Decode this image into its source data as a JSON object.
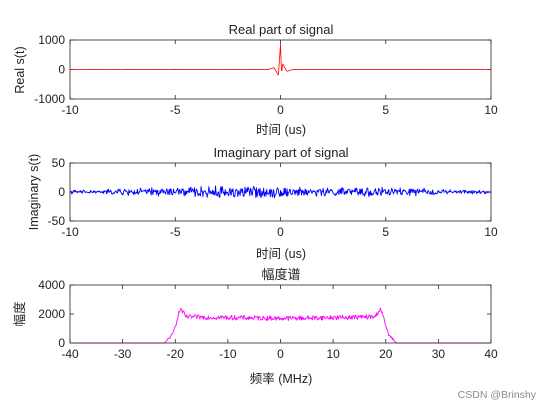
{
  "watermark": "CSDN @Brinshy",
  "chart_data": [
    {
      "type": "line",
      "title": "Real part of signal",
      "xlabel": "时间 (us)",
      "ylabel": "Real s(t)",
      "xlim": [
        -10,
        10
      ],
      "ylim": [
        -1000,
        1000
      ],
      "xticks": [
        -10,
        -5,
        0,
        5,
        10
      ],
      "yticks": [
        -1000,
        0,
        1000
      ],
      "xtick_labels": [
        "-10",
        "-5",
        "0",
        "5",
        "10"
      ],
      "ytick_labels": [
        "-1000",
        "0",
        "1000"
      ],
      "grid": false,
      "series": [
        {
          "color": "#ff0000",
          "description_points": {
            "x": [
              -10,
              -0.6,
              -0.3,
              -0.1,
              0,
              0.05,
              0.1,
              0.3,
              0.6,
              10
            ],
            "y": [
              0,
              0,
              60,
              -200,
              850,
              -150,
              200,
              -60,
              0,
              0
            ]
          },
          "noise_amplitude": 3
        }
      ]
    },
    {
      "type": "line",
      "title": "Imaginary part of signal",
      "xlabel": "时间 (us)",
      "ylabel": "Imaginary s(t)",
      "xlim": [
        -10,
        10
      ],
      "ylim": [
        -50,
        50
      ],
      "xticks": [
        -10,
        -5,
        0,
        5,
        10
      ],
      "yticks": [
        -50,
        0,
        50
      ],
      "xtick_labels": [
        "-10",
        "-5",
        "0",
        "5",
        "10"
      ],
      "ytick_labels": [
        "-50",
        "0",
        "50"
      ],
      "grid": false,
      "series": [
        {
          "color": "#0000ff",
          "description_points": {
            "x": [
              -10,
              -7.5,
              -2,
              0,
              2,
              4.5,
              10
            ],
            "y": [
              0,
              8,
              18,
              14,
              10,
              14,
              0
            ]
          },
          "noise_amplitude": 7
        }
      ]
    },
    {
      "type": "line",
      "title": "幅度谱",
      "xlabel": "频率 (MHz)",
      "ylabel": "幅度",
      "xlim": [
        -40,
        40
      ],
      "ylim": [
        0,
        4000
      ],
      "xticks": [
        -40,
        -30,
        -20,
        -10,
        0,
        10,
        20,
        30,
        40
      ],
      "yticks": [
        0,
        2000,
        4000
      ],
      "xtick_labels": [
        "-40",
        "-30",
        "-20",
        "-10",
        "0",
        "10",
        "20",
        "30",
        "40"
      ],
      "ytick_labels": [
        "0",
        "2000",
        "4000"
      ],
      "grid": false,
      "series": [
        {
          "color": "#ff00ff",
          "description_points": {
            "x": [
              -40,
              -22,
              -20.5,
              -19,
              -18,
              0,
              18,
              19,
              20.5,
              22,
              40
            ],
            "y": [
              0,
              0,
              600,
              2400,
              1800,
              1700,
              1800,
              2400,
              600,
              0,
              0
            ]
          },
          "noise_amplitude": 160
        }
      ]
    }
  ]
}
